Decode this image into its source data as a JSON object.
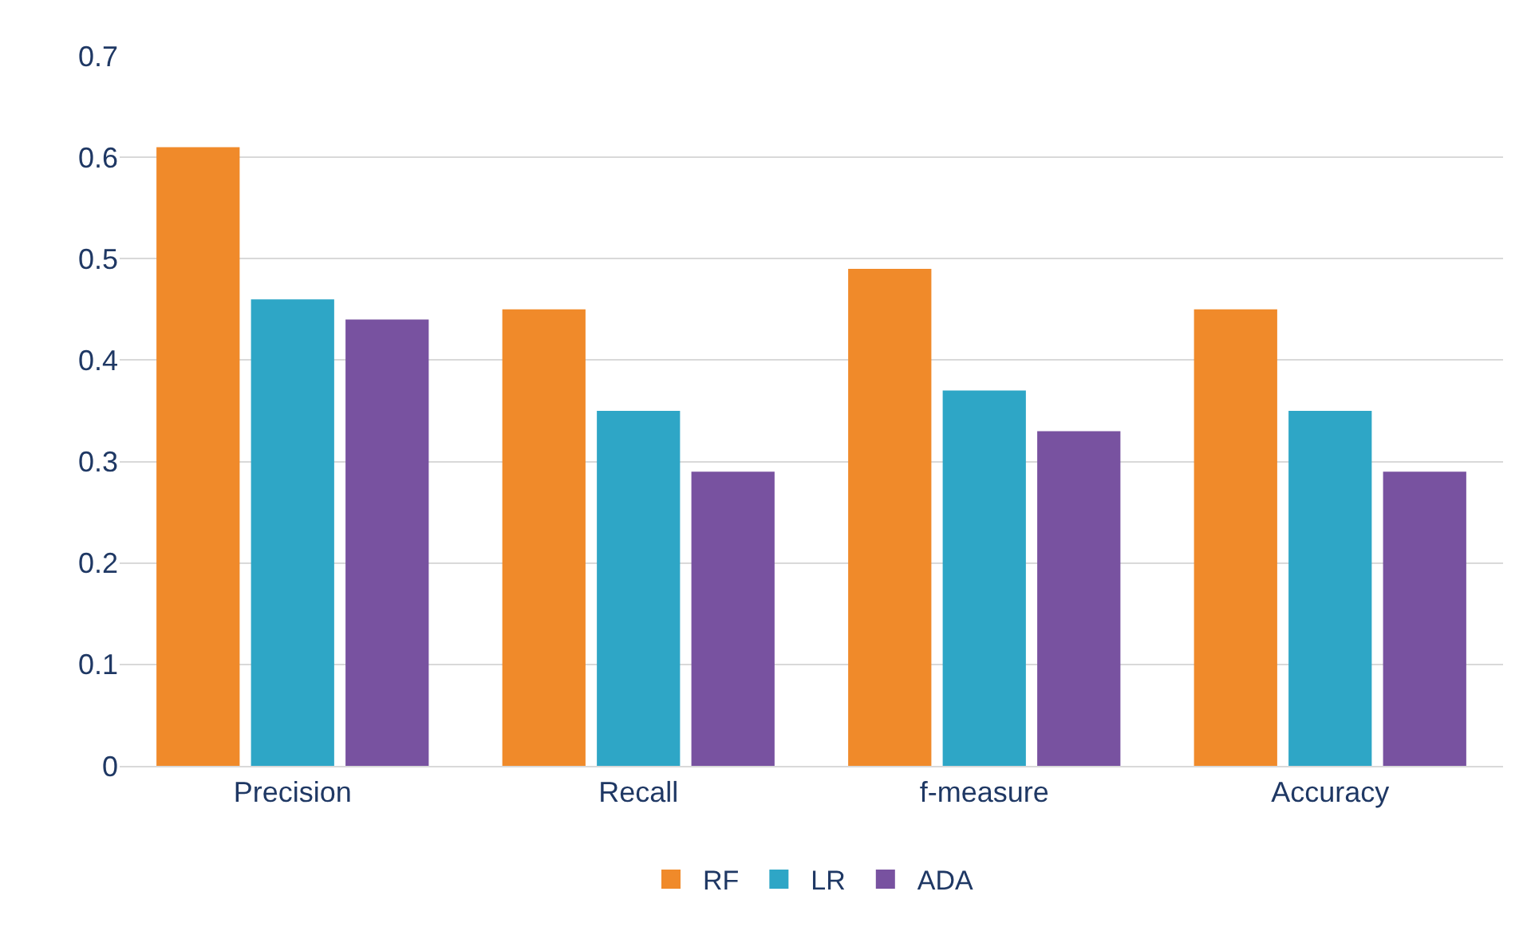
{
  "chart_data": {
    "type": "bar",
    "categories": [
      "Precision",
      "Recall",
      "f-measure",
      "Accuracy"
    ],
    "series": [
      {
        "name": "RF",
        "color": "#f08a2a",
        "values": [
          0.61,
          0.45,
          0.49,
          0.45
        ]
      },
      {
        "name": "LR",
        "color": "#2ea6c6",
        "values": [
          0.46,
          0.35,
          0.37,
          0.35
        ]
      },
      {
        "name": "ADA",
        "color": "#7852a0",
        "values": [
          0.44,
          0.29,
          0.33,
          0.29
        ]
      }
    ],
    "ylim": [
      0,
      0.7
    ],
    "yticks": [
      0,
      0.1,
      0.2,
      0.3,
      0.4,
      0.5,
      0.6,
      0.7
    ],
    "grid": "y",
    "legend": "bottom"
  }
}
